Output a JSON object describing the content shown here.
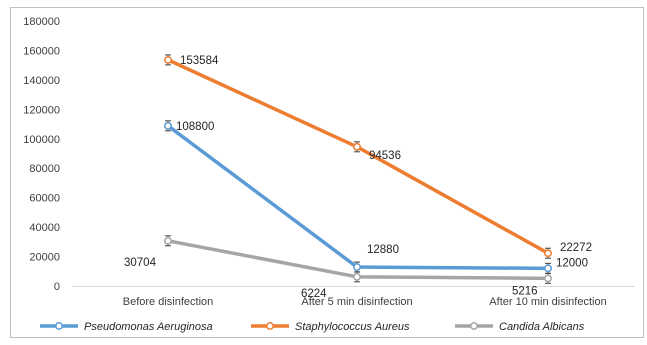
{
  "chart_data": {
    "type": "line",
    "categories": [
      "Before disinfection",
      "After 5 min disinfection",
      "After 10 min disinfection"
    ],
    "ylim": [
      0,
      180000
    ],
    "yticks": [
      "0",
      "20000",
      "40000",
      "60000",
      "80000",
      "100000",
      "120000",
      "140000",
      "160000",
      "180000"
    ],
    "grid": false,
    "legend": "bottom",
    "error_bars": true,
    "series": [
      {
        "name": "Pseudomonas Aeruginosa",
        "color": "#5b9bd5",
        "values": [
          108800,
          12880,
          12000
        ],
        "labels": [
          "108800",
          "12880",
          "12000"
        ]
      },
      {
        "name": "Staphylococcus Aureus",
        "color": "#ed7d31",
        "values": [
          153584,
          94536,
          22272
        ],
        "labels": [
          "153584",
          "94536",
          "22272"
        ]
      },
      {
        "name": "Candida Albicans",
        "color": "#a5a5a5",
        "values": [
          30704,
          6224,
          5216
        ],
        "labels": [
          "30704",
          "6224",
          "5216"
        ]
      }
    ]
  }
}
